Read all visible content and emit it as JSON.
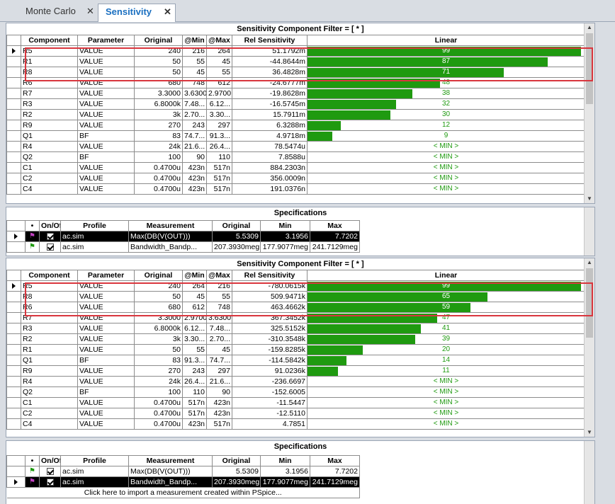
{
  "tabs": [
    {
      "label": "Monte Carlo",
      "close": "✕"
    },
    {
      "label": "Sensitivity",
      "close": "✕"
    }
  ],
  "sensitivity_headers": [
    "Component",
    "Parameter",
    "Original",
    "@Min",
    "@Max",
    "Rel Sensitivity",
    "Linear"
  ],
  "spec_headers": [
    "•",
    "On/Off",
    "Profile",
    "Measurement",
    "Original",
    "Min",
    "Max"
  ],
  "panel1": {
    "title": "Sensitivity Component Filter = [ * ]",
    "rows": [
      {
        "c": "R5",
        "p": "VALUE",
        "o": "240",
        "mn": "216",
        "mx": "264",
        "rel": "51.1792m",
        "lin": "99",
        "pct": 99
      },
      {
        "c": "R1",
        "p": "VALUE",
        "o": "50",
        "mn": "55",
        "mx": "45",
        "rel": "-44.8644m",
        "lin": "87",
        "pct": 87
      },
      {
        "c": "R8",
        "p": "VALUE",
        "o": "50",
        "mn": "45",
        "mx": "55",
        "rel": "36.4828m",
        "lin": "71",
        "pct": 71
      },
      {
        "c": "R6",
        "p": "VALUE",
        "o": "680",
        "mn": "748",
        "mx": "612",
        "rel": "-24.6777m",
        "lin": "48",
        "pct": 48
      },
      {
        "c": "R7",
        "p": "VALUE",
        "o": "3.3000",
        "mn": "3.6300",
        "mx": "2.9700",
        "rel": "-19.8628m",
        "lin": "38",
        "pct": 38
      },
      {
        "c": "R3",
        "p": "VALUE",
        "o": "6.8000k",
        "mn": "7.48...",
        "mx": "6.12...",
        "rel": "-16.5745m",
        "lin": "32",
        "pct": 32
      },
      {
        "c": "R2",
        "p": "VALUE",
        "o": "3k",
        "mn": "2.70...",
        "mx": "3.30...",
        "rel": "15.7911m",
        "lin": "30",
        "pct": 30
      },
      {
        "c": "R9",
        "p": "VALUE",
        "o": "270",
        "mn": "243",
        "mx": "297",
        "rel": "6.3288m",
        "lin": "12",
        "pct": 12
      },
      {
        "c": "Q1",
        "p": "BF",
        "o": "83",
        "mn": "74.7...",
        "mx": "91.3...",
        "rel": "4.9718m",
        "lin": "9",
        "pct": 9
      },
      {
        "c": "R4",
        "p": "VALUE",
        "o": "24k",
        "mn": "21.6...",
        "mx": "26.4...",
        "rel": "78.5474u",
        "lin": "< MIN >",
        "pct": 0
      },
      {
        "c": "Q2",
        "p": "BF",
        "o": "100",
        "mn": "90",
        "mx": "110",
        "rel": "7.8588u",
        "lin": "< MIN >",
        "pct": 0
      },
      {
        "c": "C1",
        "p": "VALUE",
        "o": "0.4700u",
        "mn": "423n",
        "mx": "517n",
        "rel": "884.2303n",
        "lin": "< MIN >",
        "pct": 0
      },
      {
        "c": "C2",
        "p": "VALUE",
        "o": "0.4700u",
        "mn": "423n",
        "mx": "517n",
        "rel": "356.0009n",
        "lin": "< MIN >",
        "pct": 0
      },
      {
        "c": "C4",
        "p": "VALUE",
        "o": "0.4700u",
        "mn": "423n",
        "mx": "517n",
        "rel": "191.0376n",
        "lin": "< MIN >",
        "pct": 0
      }
    ]
  },
  "spec1": {
    "title": "Specifications",
    "rows": [
      {
        "prof": "ac.sim",
        "meas": "Max(DB(V(OUT)))",
        "o": "5.5309",
        "mn": "3.1956",
        "mx": "7.7202",
        "flag": "#c040c0"
      },
      {
        "prof": "ac.sim",
        "meas": "Bandwidth_Bandp...",
        "o": "207.3930meg",
        "mn": "177.9077meg",
        "mx": "241.7129meg",
        "flag": "#1f9a10"
      }
    ]
  },
  "panel2": {
    "title": "Sensitivity Component Filter = [ * ]",
    "rows": [
      {
        "c": "R5",
        "p": "VALUE",
        "o": "240",
        "mn": "264",
        "mx": "216",
        "rel": "-780.0615k",
        "lin": "99",
        "pct": 99
      },
      {
        "c": "R8",
        "p": "VALUE",
        "o": "50",
        "mn": "45",
        "mx": "55",
        "rel": "509.9471k",
        "lin": "65",
        "pct": 65
      },
      {
        "c": "R6",
        "p": "VALUE",
        "o": "680",
        "mn": "612",
        "mx": "748",
        "rel": "463.4662k",
        "lin": "59",
        "pct": 59
      },
      {
        "c": "R7",
        "p": "VALUE",
        "o": "3.3000",
        "mn": "2.9700",
        "mx": "3.6300",
        "rel": "367.3452k",
        "lin": "47",
        "pct": 47
      },
      {
        "c": "R3",
        "p": "VALUE",
        "o": "6.8000k",
        "mn": "6.12...",
        "mx": "7.48...",
        "rel": "325.5152k",
        "lin": "41",
        "pct": 41
      },
      {
        "c": "R2",
        "p": "VALUE",
        "o": "3k",
        "mn": "3.30...",
        "mx": "2.70...",
        "rel": "-310.3548k",
        "lin": "39",
        "pct": 39
      },
      {
        "c": "R1",
        "p": "VALUE",
        "o": "50",
        "mn": "55",
        "mx": "45",
        "rel": "-159.8285k",
        "lin": "20",
        "pct": 20
      },
      {
        "c": "Q1",
        "p": "BF",
        "o": "83",
        "mn": "91.3...",
        "mx": "74.7...",
        "rel": "-114.5842k",
        "lin": "14",
        "pct": 14
      },
      {
        "c": "R9",
        "p": "VALUE",
        "o": "270",
        "mn": "243",
        "mx": "297",
        "rel": "91.0236k",
        "lin": "11",
        "pct": 11
      },
      {
        "c": "R4",
        "p": "VALUE",
        "o": "24k",
        "mn": "26.4...",
        "mx": "21.6...",
        "rel": "-236.6697",
        "lin": "< MIN >",
        "pct": 0
      },
      {
        "c": "Q2",
        "p": "BF",
        "o": "100",
        "mn": "110",
        "mx": "90",
        "rel": "-152.6005",
        "lin": "< MIN >",
        "pct": 0
      },
      {
        "c": "C1",
        "p": "VALUE",
        "o": "0.4700u",
        "mn": "517n",
        "mx": "423n",
        "rel": "-11.5447",
        "lin": "< MIN >",
        "pct": 0
      },
      {
        "c": "C2",
        "p": "VALUE",
        "o": "0.4700u",
        "mn": "517n",
        "mx": "423n",
        "rel": "-12.5110",
        "lin": "< MIN >",
        "pct": 0
      },
      {
        "c": "C4",
        "p": "VALUE",
        "o": "0.4700u",
        "mn": "423n",
        "mx": "517n",
        "rel": "4.7851",
        "lin": "< MIN >",
        "pct": 0
      }
    ]
  },
  "spec2": {
    "title": "Specifications",
    "rows": [
      {
        "prof": "ac.sim",
        "meas": "Max(DB(V(OUT)))",
        "o": "5.5309",
        "mn": "3.1956",
        "mx": "7.7202",
        "flag": "#1f9a10"
      },
      {
        "prof": "ac.sim",
        "meas": "Bandwidth_Bandp...",
        "o": "207.3930meg",
        "mn": "177.9077meg",
        "mx": "241.7129meg",
        "flag": "#c040c0"
      }
    ],
    "import_msg": "Click here to import a measurement created within PSpice..."
  },
  "colors": {
    "bar": "#1f9a10",
    "highlight": "#d9363e",
    "min_text": "#1f9a10"
  },
  "icons": {
    "row_pointer": "triangle-right-icon",
    "flag": "flag-icon",
    "check": "checkbox-checked-icon"
  }
}
